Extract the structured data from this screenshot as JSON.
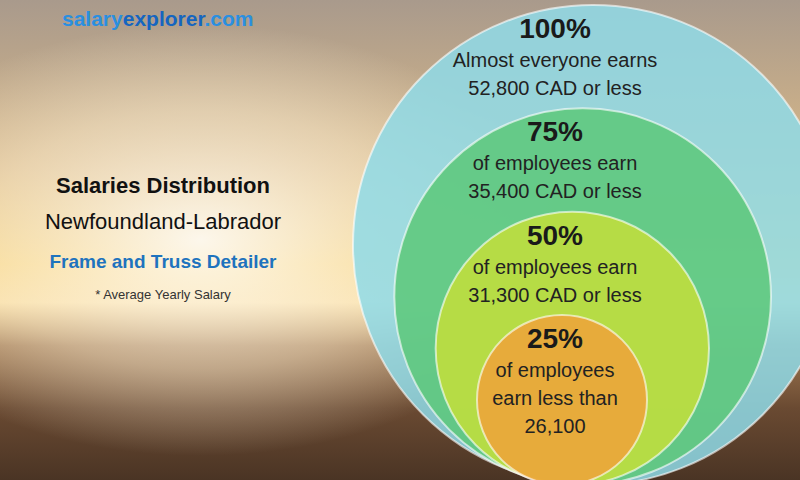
{
  "chart_data": {
    "type": "nested_circles",
    "source": [
      "salary",
      "explorer",
      ".com"
    ],
    "title": "Salaries Distribution",
    "subtitle": "Newfoundland-Labrador",
    "job_title": "Frame and Truss Detailer",
    "note": "* Average Yearly Salary",
    "percents": [
      100,
      75,
      50,
      25
    ],
    "percent_labels": [
      "100%",
      "75%",
      "50%",
      "25%"
    ],
    "descriptions": [
      [
        "Almost everyone earns"
      ],
      [
        "of employees earn"
      ],
      [
        "of employees earn"
      ],
      [
        "of employees",
        "earn less than"
      ]
    ],
    "values": [
      52800,
      35400,
      31300,
      26100
    ],
    "value_labels": [
      "52,800 CAD or less",
      "35,400 CAD or less",
      "31,300 CAD or less",
      "26,100"
    ],
    "colors": [
      "#8fdbe8",
      "#5cc879",
      "#c4df3a",
      "#f0a23a"
    ]
  }
}
